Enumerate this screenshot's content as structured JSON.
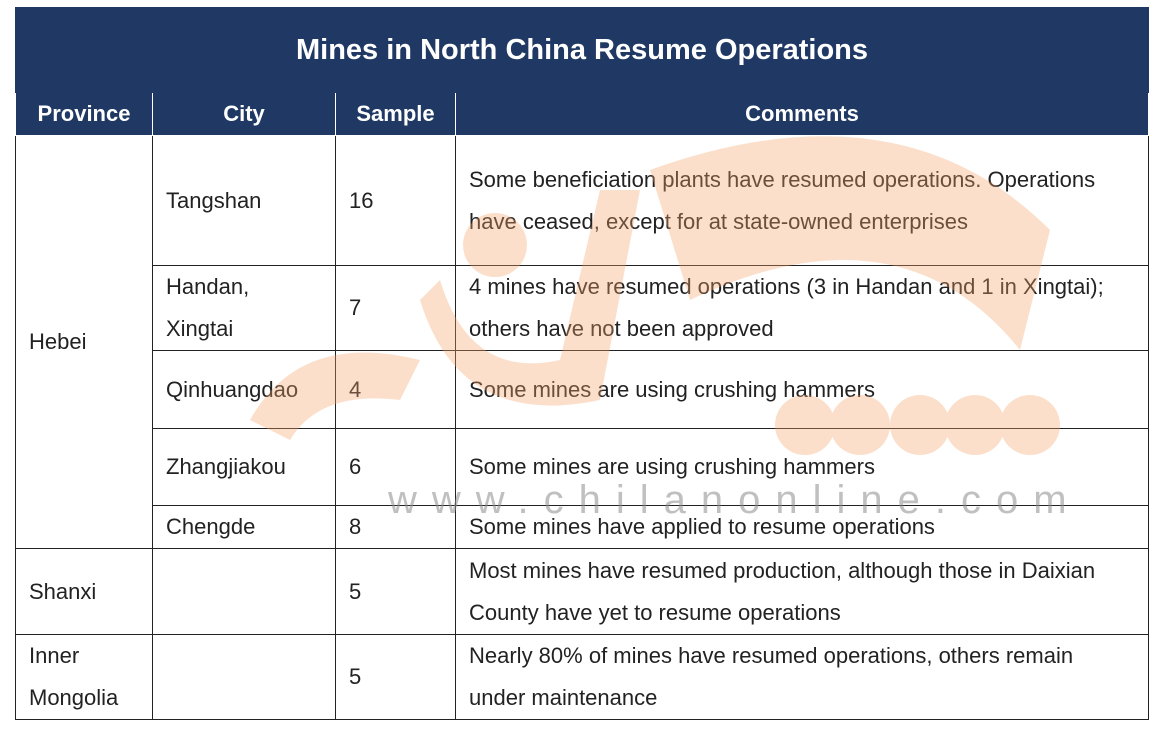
{
  "title": "Mines in North China Resume Operations",
  "table": {
    "header": [
      "Province",
      "City",
      "Sample",
      "Comments"
    ],
    "provinces": [
      {
        "name": "Hebei",
        "cities": [
          {
            "city": "Tangshan",
            "sample": 16,
            "comments": "Some beneficiation plants have resumed operations. Operations have ceased, except for at state-owned enterprises"
          },
          {
            "city": "Handan, Xingtai",
            "sample": 7,
            "comments": "4 mines have resumed operations (3 in Handan and 1 in Xingtai); others have not been approved"
          },
          {
            "city": "Qinhuangdao",
            "sample": 4,
            "comments": "Some mines are using crushing hammers"
          },
          {
            "city": "Zhangjiakou",
            "sample": 6,
            "comments": "Some mines are using crushing hammers"
          },
          {
            "city": "Chengde",
            "sample": 8,
            "comments": "Some mines have applied to resume operations"
          }
        ]
      },
      {
        "name": "Shanxi",
        "cities": [
          {
            "sample": 5,
            "comments": "Most mines have resumed production, although those in Daixian County have yet to resume operations"
          }
        ]
      },
      {
        "name": "Inner Mongolia",
        "cities": [
          {
            "sample": 5,
            "comments": "Nearly 80% of mines have resumed operations, others remain under maintenance"
          }
        ]
      }
    ]
  },
  "watermark": "www.chilanonline.com"
}
